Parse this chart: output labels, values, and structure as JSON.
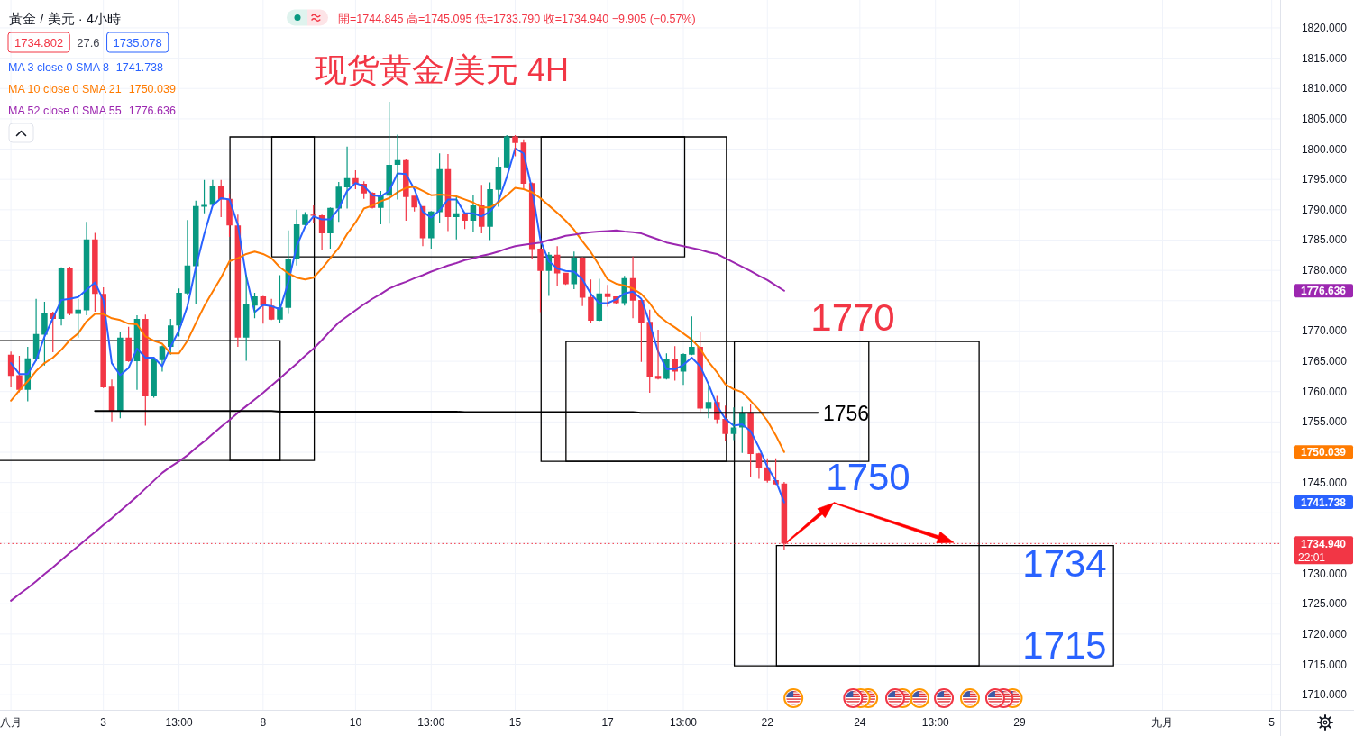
{
  "chart_data": {
    "type": "candlestick",
    "title": "现货黄金/美元 4H",
    "subtitle": "黃金 / 美元 · 4小時",
    "categories": [
      "八月",
      null,
      null,
      null,
      null,
      null,
      null,
      null,
      null,
      null,
      null,
      "3",
      null,
      null,
      null,
      null,
      null,
      null,
      null,
      null,
      "13:00",
      null,
      null,
      null,
      null,
      null,
      null,
      null,
      null,
      null,
      "8",
      null,
      null,
      null,
      null,
      null,
      null,
      null,
      null,
      null,
      null,
      "10",
      null,
      null,
      null,
      null,
      null,
      null,
      null,
      null,
      "13:00",
      null,
      null,
      null,
      null,
      null,
      null,
      null,
      null,
      null,
      "15",
      null,
      null,
      null,
      null,
      null,
      null,
      null,
      null,
      null,
      null,
      "17",
      null,
      null,
      null,
      null,
      null,
      null,
      null,
      null,
      "13:00",
      null,
      null,
      null,
      null,
      null,
      null,
      null,
      null,
      null,
      "22",
      null,
      null,
      null,
      null,
      null,
      null,
      null,
      null,
      null,
      null,
      "24",
      null,
      null,
      null,
      null,
      null,
      null,
      null,
      null,
      "13:00",
      null,
      null,
      null,
      null,
      null,
      null,
      null,
      null,
      null,
      "29",
      null,
      null,
      null,
      null,
      null,
      null,
      null,
      null,
      null,
      null,
      null,
      null,
      null,
      null,
      null,
      null,
      "九月",
      null,
      null,
      null,
      null,
      null,
      null,
      null,
      null,
      null,
      null,
      null,
      null,
      "5"
    ],
    "ohlc": [
      [
        1766.1,
        1766.6,
        1760.7,
        1762.6
      ],
      [
        1762.7,
        1765.9,
        1759.9,
        1760.3
      ],
      [
        1760.3,
        1767.4,
        1758.4,
        1765.5
      ],
      [
        1765.4,
        1775.3,
        1765.0,
        1769.5
      ],
      [
        1769.4,
        1774.8,
        1764.3,
        1773.0
      ],
      [
        1773.0,
        1773.2,
        1766.5,
        1772.0
      ],
      [
        1772.0,
        1780.5,
        1770.9,
        1780.4
      ],
      [
        1780.4,
        1780.6,
        1772.6,
        1772.8
      ],
      [
        1772.8,
        1775.3,
        1768.9,
        1773.5
      ],
      [
        1773.4,
        1788.0,
        1772.6,
        1785.1
      ],
      [
        1785.1,
        1786.2,
        1773.2,
        1776.1
      ],
      [
        1776.1,
        1777.2,
        1760.6,
        1760.7
      ],
      [
        1760.8,
        1762.0,
        1755.1,
        1756.7
      ],
      [
        1756.7,
        1769.9,
        1755.6,
        1768.9
      ],
      [
        1768.9,
        1770.7,
        1764.9,
        1765.0
      ],
      [
        1765.0,
        1772.6,
        1760.3,
        1772.0
      ],
      [
        1772.0,
        1772.7,
        1754.4,
        1759.2
      ],
      [
        1759.2,
        1765.6,
        1759.0,
        1765.3
      ],
      [
        1765.2,
        1767.6,
        1763.3,
        1767.5
      ],
      [
        1767.4,
        1772.0,
        1766.1,
        1770.9
      ],
      [
        1770.9,
        1777.0,
        1769.1,
        1776.3
      ],
      [
        1776.2,
        1788.3,
        1776.0,
        1780.8
      ],
      [
        1780.7,
        1791.5,
        1774.4,
        1790.6
      ],
      [
        1790.5,
        1794.9,
        1789.4,
        1790.8
      ],
      [
        1790.8,
        1794.9,
        1790.7,
        1794.0
      ],
      [
        1794.0,
        1794.9,
        1788.8,
        1791.7
      ],
      [
        1791.8,
        1792.7,
        1785.5,
        1787.4
      ],
      [
        1787.4,
        1789.2,
        1767.4,
        1768.9
      ],
      [
        1768.9,
        1779.2,
        1765.1,
        1774.4
      ],
      [
        1774.2,
        1776.3,
        1772.1,
        1775.7
      ],
      [
        1775.7,
        1775.8,
        1771.2,
        1774.2
      ],
      [
        1774.2,
        1775.3,
        1771.8,
        1771.9
      ],
      [
        1771.9,
        1779.2,
        1771.3,
        1773.9
      ],
      [
        1773.8,
        1786.6,
        1772.8,
        1781.9
      ],
      [
        1781.8,
        1790.0,
        1780.8,
        1787.6
      ],
      [
        1787.5,
        1789.6,
        1787.4,
        1789.2
      ],
      [
        1789.2,
        1790.7,
        1787.9,
        1789.0
      ],
      [
        1789.1,
        1789.2,
        1783.3,
        1786.1
      ],
      [
        1786.1,
        1790.4,
        1783.6,
        1790.3
      ],
      [
        1790.2,
        1794.6,
        1788.0,
        1793.8
      ],
      [
        1793.7,
        1800.4,
        1790.2,
        1795.2
      ],
      [
        1795.2,
        1796.5,
        1793.4,
        1794.2
      ],
      [
        1794.3,
        1794.7,
        1791.8,
        1792.7
      ],
      [
        1792.8,
        1792.9,
        1790.2,
        1790.3
      ],
      [
        1790.3,
        1793.1,
        1787.6,
        1792.4
      ],
      [
        1792.3,
        1807.8,
        1787.7,
        1797.4
      ],
      [
        1797.4,
        1802.4,
        1791.7,
        1798.2
      ],
      [
        1798.2,
        1798.4,
        1788.2,
        1792.1
      ],
      [
        1792.3,
        1792.3,
        1789.7,
        1790.4
      ],
      [
        1790.6,
        1790.6,
        1784.0,
        1785.3
      ],
      [
        1785.3,
        1789.8,
        1783.6,
        1789.7
      ],
      [
        1789.6,
        1799.3,
        1787.9,
        1796.7
      ],
      [
        1796.7,
        1799.2,
        1786.5,
        1788.8
      ],
      [
        1788.8,
        1792.1,
        1785.1,
        1789.4
      ],
      [
        1789.4,
        1789.5,
        1786.8,
        1788.2
      ],
      [
        1788.2,
        1792.5,
        1786.3,
        1790.7
      ],
      [
        1790.7,
        1794.1,
        1786.1,
        1787.2
      ],
      [
        1787.2,
        1794.5,
        1785.0,
        1793.4
      ],
      [
        1793.3,
        1798.7,
        1790.5,
        1797.1
      ],
      [
        1797.0,
        1802.3,
        1796.9,
        1802.1
      ],
      [
        1802.1,
        1802.3,
        1798.8,
        1801.0
      ],
      [
        1801.1,
        1801.6,
        1793.5,
        1794.3
      ],
      [
        1794.4,
        1794.5,
        1781.8,
        1783.5
      ],
      [
        1783.6,
        1783.7,
        1773.1,
        1779.9
      ],
      [
        1779.9,
        1783.0,
        1775.8,
        1782.6
      ],
      [
        1782.6,
        1784.0,
        1777.5,
        1779.5
      ],
      [
        1779.6,
        1779.6,
        1777.6,
        1777.7
      ],
      [
        1777.7,
        1783.1,
        1776.9,
        1782.1
      ],
      [
        1782.1,
        1782.2,
        1774.1,
        1775.5
      ],
      [
        1775.6,
        1778.5,
        1771.4,
        1771.7
      ],
      [
        1771.7,
        1778.6,
        1771.6,
        1776.2
      ],
      [
        1776.2,
        1777.6,
        1774.0,
        1775.6
      ],
      [
        1775.7,
        1775.7,
        1774.5,
        1774.6
      ],
      [
        1774.6,
        1779.1,
        1774.2,
        1778.7
      ],
      [
        1778.7,
        1782.3,
        1772.1,
        1775.0
      ],
      [
        1775.1,
        1775.2,
        1764.9,
        1771.4
      ],
      [
        1771.5,
        1773.5,
        1759.8,
        1762.5
      ],
      [
        1762.6,
        1770.2,
        1762.0,
        1762.1
      ],
      [
        1762.1,
        1766.3,
        1762.0,
        1765.4
      ],
      [
        1765.4,
        1767.5,
        1761.8,
        1763.3
      ],
      [
        1763.3,
        1766.3,
        1761.1,
        1766.2
      ],
      [
        1766.1,
        1772.4,
        1766.0,
        1767.4
      ],
      [
        1767.4,
        1769.9,
        1756.6,
        1757.2
      ],
      [
        1757.2,
        1761.2,
        1755.6,
        1758.3
      ],
      [
        1758.3,
        1759.3,
        1754.7,
        1755.4
      ],
      [
        1755.5,
        1757.7,
        1751.8,
        1753.0
      ],
      [
        1753.0,
        1757.4,
        1752.0,
        1754.1
      ],
      [
        1754.1,
        1757.5,
        1749.9,
        1756.5
      ],
      [
        1756.5,
        1758.0,
        1745.9,
        1749.7
      ],
      [
        1749.8,
        1749.9,
        1745.6,
        1747.4
      ],
      [
        1747.5,
        1749.0,
        1745.0,
        1745.3
      ],
      [
        1745.4,
        1749.0,
        1744.6,
        1744.7
      ],
      [
        1744.845,
        1745.095,
        1733.79,
        1734.94
      ],
      null,
      null,
      null,
      null,
      null,
      null,
      null,
      null,
      null,
      null,
      null,
      null,
      null,
      null,
      null,
      null,
      null,
      null,
      null,
      null,
      null,
      null,
      null,
      null,
      null,
      null,
      null,
      null,
      null,
      null,
      null,
      null,
      null,
      null,
      null,
      null,
      null,
      null,
      null,
      null,
      null,
      null,
      null,
      null,
      null,
      null,
      null,
      null,
      null,
      null,
      null,
      null,
      null,
      null,
      null,
      null,
      null,
      null
    ],
    "colors": [
      "#f23645",
      "#f23645",
      "#089981",
      "#089981",
      "#089981",
      "#f23645",
      "#089981",
      "#f23645",
      "#089981",
      "#089981",
      "#f23645",
      "#f23645",
      "#f23645",
      "#089981",
      "#f23645",
      "#089981",
      "#f23645",
      "#089981",
      "#089981",
      "#089981",
      "#089981",
      "#089981",
      "#089981",
      "#089981",
      "#089981",
      "#f23645",
      "#f23645",
      "#f23645",
      "#089981",
      "#089981",
      "#f23645",
      "#f23645",
      "#089981",
      "#089981",
      "#089981",
      "#089981",
      "#f23645",
      "#f23645",
      "#089981",
      "#089981",
      "#089981",
      "#f23645",
      "#f23645",
      "#f23645",
      "#089981",
      "#089981",
      "#089981",
      "#f23645",
      "#f23645",
      "#f23645",
      "#089981",
      "#089981",
      "#f23645",
      "#089981",
      "#f23645",
      "#089981",
      "#f23645",
      "#089981",
      "#089981",
      "#089981",
      "#f23645",
      "#f23645",
      "#f23645",
      "#f23645",
      "#089981",
      "#f23645",
      "#f23645",
      "#089981",
      "#f23645",
      "#f23645",
      "#089981",
      "#f23645",
      "#f23645",
      "#089981",
      "#f23645",
      "#f23645",
      "#f23645",
      "#f23645",
      "#089981",
      "#f23645",
      "#089981",
      "#089981",
      "#f23645",
      "#089981",
      "#f23645",
      "#f23645",
      "#089981",
      "#089981",
      "#f23645",
      "#f23645",
      "#f23645",
      "#f23645",
      "#f23645",
      null,
      null,
      null,
      null,
      null,
      null,
      null,
      null,
      null,
      null,
      null,
      null,
      null,
      null,
      null,
      null,
      null,
      null,
      null,
      null,
      null,
      null,
      null,
      null,
      null,
      null,
      null,
      null,
      null,
      null,
      null,
      null,
      null,
      null,
      null,
      null,
      null,
      null,
      null,
      null,
      null,
      null,
      null,
      null,
      null,
      null,
      null,
      null,
      null,
      null,
      null,
      null,
      null,
      null,
      null,
      null,
      null,
      null
    ],
    "series": [
      {
        "name": "MA 3 close 0 SMA 8",
        "type": "line",
        "color": "#2962ff",
        "values": [
          1764.7,
          1762.9,
          1762.9,
          1765.2,
          1769.1,
          1772.1,
          1775.1,
          1775.3,
          1775.6,
          1776.8,
          1778.0,
          1775.1,
          1764.7,
          1762.7,
          1763.9,
          1767.1,
          1765.6,
          1765.6,
          1764.2,
          1767.4,
          1770.1,
          1774.1,
          1780.5,
          1786.0,
          1790.7,
          1791.9,
          1791.7,
          1787.5,
          1779.0,
          1773.1,
          1774.3,
          1774.1,
          1773.6,
          1778.0,
          1784.0,
          1787.2,
          1788.9,
          1788.4,
          1788.4,
          1790.2,
          1793.1,
          1794.4,
          1793.9,
          1792.4,
          1792.2,
          1793.1,
          1796.0,
          1795.9,
          1793.4,
          1789.7,
          1788.7,
          1789.9,
          1791.7,
          1791.7,
          1789.4,
          1789.4,
          1788.9,
          1789.7,
          1791.4,
          1795.4,
          1800.1,
          1799.3,
          1793.4,
          1785.0,
          1781.5,
          1780.3,
          1779.9,
          1779.8,
          1778.5,
          1776.1,
          1774.6,
          1774.6,
          1775.2,
          1776.2,
          1776.5,
          1775.3,
          1771.3,
          1766.6,
          1763.7,
          1763.7,
          1764.4,
          1765.6,
          1764.2,
          1761.2,
          1757.7,
          1755.5,
          1754.4,
          1754.6,
          1753.5,
          1750.8,
          1747.6,
          1745.3,
          1741.738,
          null,
          null,
          null,
          null,
          null,
          null,
          null,
          null,
          null,
          null,
          null,
          null,
          null,
          null,
          null,
          null,
          null,
          null,
          null,
          null,
          null,
          null,
          null,
          null,
          null,
          null,
          null,
          null,
          null,
          null,
          null,
          null,
          null,
          null,
          null,
          null,
          null,
          null,
          null,
          null,
          null,
          null,
          null,
          null,
          null,
          null,
          null,
          null,
          null,
          null,
          null,
          null,
          null,
          null,
          null,
          null,
          null,
          null
        ]
      },
      {
        "name": "MA 10 close 0 SMA 21",
        "type": "line",
        "color": "#ff7b00",
        "values": [
          1758.5,
          1760.2,
          1761.7,
          1763.4,
          1764.7,
          1765.6,
          1766.9,
          1768.5,
          1769.6,
          1771.6,
          1772.8,
          1772.8,
          1772.1,
          1771.8,
          1771.2,
          1771.1,
          1769.1,
          1768.4,
          1767.9,
          1766.3,
          1766.3,
          1768.4,
          1771.3,
          1774.1,
          1776.5,
          1778.8,
          1781.5,
          1782.0,
          1782.7,
          1783.1,
          1782.7,
          1782.0,
          1780.5,
          1779.5,
          1778.8,
          1778.5,
          1778.8,
          1780.3,
          1782.0,
          1783.7,
          1786.0,
          1787.9,
          1790.2,
          1790.7,
          1791.4,
          1791.9,
          1792.9,
          1793.6,
          1793.8,
          1793.1,
          1792.4,
          1792.5,
          1792.4,
          1792.2,
          1791.7,
          1791.2,
          1790.4,
          1790.4,
          1791.2,
          1792.4,
          1793.6,
          1793.4,
          1792.9,
          1791.9,
          1790.7,
          1789.5,
          1788.2,
          1786.7,
          1784.8,
          1783.0,
          1780.8,
          1778.5,
          1777.8,
          1777.5,
          1777.0,
          1776.1,
          1774.6,
          1772.6,
          1771.5,
          1770.6,
          1769.6,
          1768.6,
          1767.1,
          1764.9,
          1763.2,
          1761.2,
          1760.4,
          1759.9,
          1758.5,
          1757.0,
          1755.2,
          1752.8,
          1750.039,
          null,
          null,
          null,
          null,
          null,
          null,
          null,
          null,
          null,
          null,
          null,
          null,
          null,
          null,
          null,
          null,
          null,
          null,
          null,
          null,
          null,
          null,
          null,
          null,
          null,
          null,
          null,
          null,
          null,
          null,
          null,
          null,
          null,
          null,
          null,
          null,
          null,
          null,
          null,
          null,
          null,
          null,
          null,
          null,
          null,
          null,
          null,
          null,
          null,
          null,
          null,
          null,
          null,
          null,
          null,
          null,
          null,
          null
        ]
      },
      {
        "name": "MA 52 close 0 SMA 55",
        "type": "line",
        "color": "#9c27b0",
        "values": [
          1725.5,
          1726.6,
          1727.6,
          1728.7,
          1729.9,
          1731.0,
          1732.2,
          1733.4,
          1734.5,
          1735.7,
          1736.8,
          1738.0,
          1739.1,
          1740.3,
          1741.5,
          1742.7,
          1744.0,
          1745.3,
          1746.6,
          1747.6,
          1748.5,
          1749.5,
          1750.7,
          1751.8,
          1753.0,
          1754.2,
          1755.3,
          1756.5,
          1757.6,
          1758.7,
          1759.8,
          1761.0,
          1762.2,
          1763.4,
          1764.6,
          1765.9,
          1767.1,
          1768.5,
          1770.0,
          1771.4,
          1772.4,
          1773.4,
          1774.4,
          1775.3,
          1776.1,
          1777.0,
          1777.6,
          1778.1,
          1778.7,
          1779.2,
          1779.8,
          1780.3,
          1780.8,
          1781.2,
          1781.7,
          1782.0,
          1782.4,
          1782.7,
          1783.1,
          1783.6,
          1784.0,
          1784.2,
          1784.4,
          1784.6,
          1785.0,
          1785.3,
          1785.7,
          1785.9,
          1786.1,
          1786.3,
          1786.4,
          1786.5,
          1786.6,
          1786.4,
          1786.3,
          1786.1,
          1785.6,
          1785.1,
          1784.6,
          1784.3,
          1784.0,
          1783.7,
          1783.4,
          1783.0,
          1782.7,
          1782.0,
          1781.3,
          1780.6,
          1779.9,
          1779.1,
          1778.4,
          1777.5,
          1776.636,
          null,
          null,
          null,
          null,
          null,
          null,
          null,
          null,
          null,
          null,
          null,
          null,
          null,
          null,
          null,
          null,
          null,
          null,
          null,
          null,
          null,
          null,
          null,
          null,
          null,
          null,
          null,
          null,
          null,
          null,
          null,
          null,
          null,
          null,
          null,
          null,
          null,
          null,
          null,
          null,
          null,
          null,
          null,
          null,
          null,
          null,
          null,
          null,
          null,
          null,
          null,
          null,
          null,
          null,
          null,
          null,
          null,
          null
        ]
      },
      {
        "type": "line",
        "color": "#000000",
        "values": [
          null,
          null,
          null,
          null,
          null,
          null,
          null,
          null,
          null,
          null,
          1756.8,
          1756.8,
          1756.8,
          1756.8,
          1756.8,
          1756.8,
          1756.8,
          1756.8,
          1756.8,
          1756.8,
          1756.8,
          1756.8,
          1756.8,
          1756.8,
          1756.8,
          1756.8,
          1756.8,
          1756.8,
          1756.8,
          1756.8,
          1756.8,
          1756.8,
          1756.7,
          1756.7,
          1756.7,
          1756.7,
          1756.7,
          1756.7,
          1756.7,
          1756.7,
          1756.7,
          1756.7,
          1756.7,
          1756.7,
          1756.7,
          1756.7,
          1756.7,
          1756.7,
          1756.7,
          1756.7,
          1756.7,
          1756.7,
          1756.7,
          1756.7,
          1756.6,
          1756.6,
          1756.6,
          1756.6,
          1756.6,
          1756.6,
          1756.6,
          1756.6,
          1756.6,
          1756.6,
          1756.6,
          1756.6,
          1756.6,
          1756.6,
          1756.6,
          1756.6,
          1756.6,
          1756.6,
          1756.6,
          1756.6,
          1756.6,
          1756.5,
          1756.5,
          1756.5,
          1756.5,
          1756.5,
          1756.5,
          1756.5,
          1756.5,
          1756.5,
          1756.5,
          1756.5,
          1756.5,
          1756.5,
          1756.5,
          1756.5,
          1756.5,
          1756.5,
          1756.5,
          1756.5,
          1756.5,
          1756.5,
          1756.5,
          null,
          null,
          null,
          null,
          null,
          null,
          null,
          null,
          null,
          null,
          null,
          null,
          null,
          null,
          null,
          null,
          null,
          null,
          null,
          null,
          null,
          null,
          null,
          null,
          null,
          null,
          null,
          null,
          null,
          null,
          null,
          null,
          null,
          null,
          null,
          null,
          null,
          null,
          null,
          null,
          null,
          null,
          null,
          null,
          null,
          null,
          null,
          null,
          null,
          null,
          null,
          null,
          null,
          null
        ]
      }
    ],
    "ref_lines": [
      {
        "axis": "y",
        "value": 1734.94,
        "label": "1734.940",
        "color": "#f23645",
        "line_style": "dotted"
      }
    ],
    "annotations": [
      "1734.802",
      "27.6",
      "1735.078",
      "開=1744.845 高=1745.095 低=1733.790 收=1734.940 −9.905 (−0.57%)",
      "22:01",
      "1741.738",
      "1750.039",
      "1776.636",
      "1741.738",
      "1750.039",
      "1776.636",
      "1770",
      "1756",
      {
        "text": "1750",
        "y": 1734.94
      },
      "1734",
      "1715"
    ],
    "ylim": [
      1707.5,
      1824.6
    ],
    "yticks": [
      {
        "value": 1710,
        "label": "1710.000"
      },
      {
        "value": 1715,
        "label": "1715.000"
      },
      {
        "value": 1720,
        "label": "1720.000"
      },
      {
        "value": 1725,
        "label": "1725.000"
      },
      {
        "value": 1730,
        "label": "1730.000"
      },
      {
        "value": 1735,
        "label": null
      },
      {
        "value": 1740,
        "label": null
      },
      {
        "value": 1745,
        "label": "1745.000"
      },
      {
        "value": 1750,
        "label": null
      },
      {
        "value": 1755,
        "label": "1755.000"
      },
      {
        "value": 1760,
        "label": "1760.000"
      },
      {
        "value": 1765,
        "label": "1765.000"
      },
      {
        "value": 1770,
        "label": "1770.000"
      },
      {
        "value": 1775,
        "label": null
      },
      {
        "value": 1780,
        "label": "1780.000"
      },
      {
        "value": 1785,
        "label": "1785.000"
      },
      {
        "value": 1790,
        "label": "1790.000"
      },
      {
        "value": 1795,
        "label": "1795.000"
      },
      {
        "value": 1800,
        "label": "1800.000"
      },
      {
        "value": 1805,
        "label": "1805.000"
      },
      {
        "value": 1810,
        "label": "1810.000"
      },
      {
        "value": 1815,
        "label": "1815.000"
      },
      {
        "value": 1820,
        "label": "1820.000"
      }
    ],
    "grid": true,
    "legend": "top left"
  }
}
